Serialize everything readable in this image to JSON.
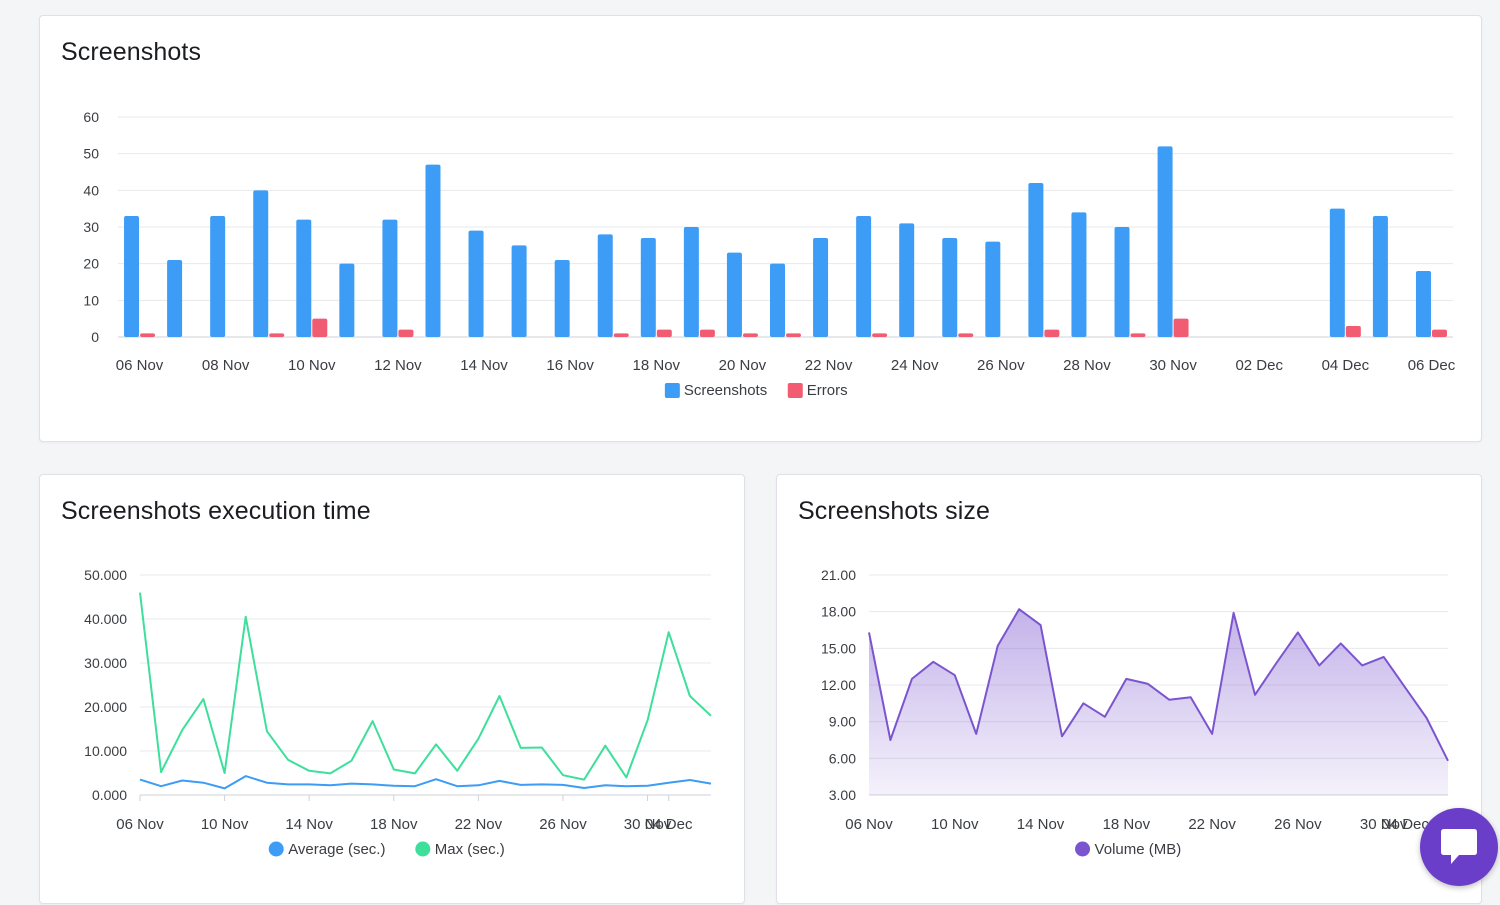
{
  "chat_icon": "chat-bubble-icon",
  "colors": {
    "screenshots": "#3d9cf5",
    "errors": "#f25c73",
    "average": "#3d9cf5",
    "max": "#3ddf9b",
    "volume": "#7b55cf",
    "chat": "#6a3ec9"
  },
  "chart_data": [
    {
      "title": "Screenshots",
      "type": "bar",
      "categories": [
        "06 Nov",
        "07 Nov",
        "08 Nov",
        "09 Nov",
        "10 Nov",
        "11 Nov",
        "12 Nov",
        "13 Nov",
        "14 Nov",
        "15 Nov",
        "16 Nov",
        "17 Nov",
        "18 Nov",
        "19 Nov",
        "20 Nov",
        "21 Nov",
        "22 Nov",
        "23 Nov",
        "24 Nov",
        "25 Nov",
        "26 Nov",
        "27 Nov",
        "28 Nov",
        "29 Nov",
        "30 Nov",
        "01 Dec",
        "02 Dec",
        "03 Dec",
        "04 Dec",
        "05 Dec",
        "06 Dec"
      ],
      "x_tick_labels": [
        "06 Nov",
        "08 Nov",
        "10 Nov",
        "12 Nov",
        "14 Nov",
        "16 Nov",
        "18 Nov",
        "20 Nov",
        "22 Nov",
        "24 Nov",
        "26 Nov",
        "28 Nov",
        "30 Nov",
        "02 Dec",
        "04 Dec",
        "06 Dec"
      ],
      "series": [
        {
          "name": "Screenshots",
          "values": [
            33,
            21,
            33,
            40,
            32,
            20,
            32,
            47,
            29,
            25,
            21,
            28,
            27,
            30,
            23,
            20,
            27,
            33,
            31,
            27,
            26,
            42,
            34,
            30,
            52,
            0,
            0,
            0,
            35,
            33,
            18
          ]
        },
        {
          "name": "Errors",
          "values": [
            1,
            0,
            0,
            1,
            5,
            0,
            2,
            0,
            0,
            0,
            0,
            1,
            2,
            2,
            1,
            1,
            0,
            1,
            0,
            1,
            0,
            2,
            0,
            1,
            5,
            0,
            0,
            0,
            3,
            0,
            2
          ]
        }
      ],
      "ylim": [
        0,
        60
      ],
      "y_tick_labels": [
        "0",
        "10",
        "20",
        "30",
        "40",
        "50",
        "60"
      ],
      "legend_placement": "bottom-center",
      "grid": true
    },
    {
      "title": "Screenshots execution time",
      "type": "line",
      "x": [
        "06 Nov",
        "07 Nov",
        "08 Nov",
        "09 Nov",
        "10 Nov",
        "11 Nov",
        "12 Nov",
        "13 Nov",
        "14 Nov",
        "15 Nov",
        "16 Nov",
        "17 Nov",
        "18 Nov",
        "19 Nov",
        "20 Nov",
        "21 Nov",
        "22 Nov",
        "23 Nov",
        "24 Nov",
        "25 Nov",
        "26 Nov",
        "27 Nov",
        "28 Nov",
        "29 Nov",
        "30 Nov",
        "04 Dec",
        "05 Dec",
        "06 Dec"
      ],
      "x_tick_labels": [
        "06 Nov",
        "10 Nov",
        "14 Nov",
        "18 Nov",
        "22 Nov",
        "26 Nov",
        "30 Nov",
        "04 Dec"
      ],
      "series": [
        {
          "name": "Average (sec.)",
          "values": [
            3.5,
            2.0,
            3.3,
            2.8,
            1.5,
            4.3,
            2.8,
            2.4,
            2.4,
            2.2,
            2.6,
            2.4,
            2.1,
            2.0,
            3.6,
            2.0,
            2.2,
            3.2,
            2.3,
            2.4,
            2.3,
            1.6,
            2.2,
            2.0,
            2.1,
            2.8,
            3.4,
            2.6
          ]
        },
        {
          "name": "Max (sec.)",
          "values": [
            46.0,
            5.2,
            14.8,
            21.8,
            5.0,
            40.5,
            14.5,
            8.0,
            5.5,
            4.9,
            7.8,
            16.8,
            5.8,
            4.9,
            11.5,
            5.5,
            12.8,
            22.5,
            10.7,
            10.8,
            4.5,
            3.5,
            11.2,
            4.0,
            17.0,
            37.0,
            22.5,
            18.0
          ]
        }
      ],
      "ylim": [
        0,
        50
      ],
      "y_tick_labels": [
        "0.000",
        "10.000",
        "20.000",
        "30.000",
        "40.000",
        "50.000"
      ],
      "legend_placement": "bottom-center",
      "grid": true
    },
    {
      "title": "Screenshots size",
      "type": "area",
      "x": [
        "06 Nov",
        "07 Nov",
        "08 Nov",
        "09 Nov",
        "10 Nov",
        "11 Nov",
        "12 Nov",
        "13 Nov",
        "14 Nov",
        "15 Nov",
        "16 Nov",
        "17 Nov",
        "18 Nov",
        "19 Nov",
        "20 Nov",
        "21 Nov",
        "22 Nov",
        "23 Nov",
        "24 Nov",
        "25 Nov",
        "26 Nov",
        "27 Nov",
        "28 Nov",
        "29 Nov",
        "30 Nov",
        "04 Dec",
        "05 Dec",
        "06 Dec"
      ],
      "x_tick_labels": [
        "06 Nov",
        "10 Nov",
        "14 Nov",
        "18 Nov",
        "22 Nov",
        "26 Nov",
        "30 Nov",
        "04 Dec"
      ],
      "series": [
        {
          "name": "Volume (MB)",
          "values": [
            16.3,
            7.5,
            12.5,
            13.9,
            12.8,
            8.0,
            15.2,
            18.2,
            16.9,
            7.8,
            10.5,
            9.4,
            12.5,
            12.1,
            10.8,
            11.0,
            8.0,
            17.9,
            11.2,
            13.8,
            16.3,
            13.6,
            15.4,
            13.6,
            14.3,
            11.8,
            9.3,
            5.8
          ]
        }
      ],
      "ylim": [
        3,
        21
      ],
      "y_tick_labels": [
        "3.00",
        "6.00",
        "9.00",
        "12.00",
        "15.00",
        "18.00",
        "21.00"
      ],
      "legend_placement": "bottom-center",
      "grid": true
    }
  ]
}
